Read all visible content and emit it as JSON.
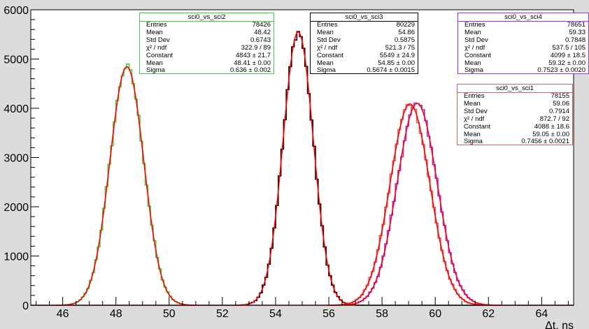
{
  "chart_data": {
    "type": "histogram",
    "xlabel": "Δt, ns",
    "ylabel": "",
    "xlim": [
      44.8,
      65.2
    ],
    "ylim": [
      0,
      6000
    ],
    "xticks": [
      "46",
      "48",
      "50",
      "52",
      "54",
      "56",
      "58",
      "60",
      "62",
      "64"
    ],
    "yticks": [
      "0",
      "1000",
      "2000",
      "3000",
      "4000",
      "5000",
      "6000"
    ],
    "grid": false,
    "series": [
      {
        "name": "sci0_vs_sci2",
        "color": "#44cc44",
        "fit_constant": 4843,
        "fit_mean": 48.41,
        "fit_sigma": 0.636,
        "stats": [
          {
            "label": "Entries",
            "value": "78426"
          },
          {
            "label": "Mean",
            "value": "48.42"
          },
          {
            "label": "Std Dev",
            "value": "0.6743"
          },
          {
            "label": "χ² / ndf",
            "value": "322.9 / 89"
          },
          {
            "label": "Constant",
            "value": "4843 ± 21.7"
          },
          {
            "label": "Mean",
            "value": "48.41 ± 0.00"
          },
          {
            "label": "Sigma",
            "value": "0.636 ± 0.002"
          }
        ]
      },
      {
        "name": "sci0_vs_sci3",
        "color": "#000000",
        "fit_constant": 5549,
        "fit_mean": 54.85,
        "fit_sigma": 0.5674,
        "stats": [
          {
            "label": "Entries",
            "value": "80229"
          },
          {
            "label": "Mean",
            "value": "54.86"
          },
          {
            "label": "Std Dev",
            "value": "0.5875"
          },
          {
            "label": "χ² / ndf",
            "value": "521.3 / 75"
          },
          {
            "label": "Constant",
            "value": "5549 ± 24.9"
          },
          {
            "label": "Mean",
            "value": "54.85 ± 0.00"
          },
          {
            "label": "Sigma",
            "value": "0.5674 ± 0.0015"
          }
        ]
      },
      {
        "name": "sci0_vs_sci4",
        "color": "#9933ee",
        "fit_constant": 4099,
        "fit_mean": 59.32,
        "fit_sigma": 0.7523,
        "stats": [
          {
            "label": "Entries",
            "value": "78651"
          },
          {
            "label": "Mean",
            "value": "59.33"
          },
          {
            "label": "Std Dev",
            "value": "0.7848"
          },
          {
            "label": "χ² / ndf",
            "value": "537.5 / 105"
          },
          {
            "label": "Constant",
            "value": "4099 ± 18.5"
          },
          {
            "label": "Mean",
            "value": "59.32 ± 0.00"
          },
          {
            "label": "Sigma",
            "value": "0.7523 ± 0.0020"
          }
        ]
      },
      {
        "name": "sci0_vs_sci1",
        "color": "#cc6666",
        "fit_constant": 4088,
        "fit_mean": 59.05,
        "fit_sigma": 0.7456,
        "stats": [
          {
            "label": "Entries",
            "value": "78155"
          },
          {
            "label": "Mean",
            "value": "59.06"
          },
          {
            "label": "Std Dev",
            "value": "0.7914"
          },
          {
            "label": "χ² / ndf",
            "value": "872.7 / 92"
          },
          {
            "label": "Constant",
            "value": "4088 ± 18.6"
          },
          {
            "label": "Mean",
            "value": "59.05 ± 0.00"
          },
          {
            "label": "Sigma",
            "value": "0.7456 ± 0.0021"
          }
        ]
      }
    ],
    "fit_color": "#ff0000",
    "stat_box_placement": [
      "top-left",
      "top-center",
      "top-right",
      "right-upper"
    ]
  }
}
